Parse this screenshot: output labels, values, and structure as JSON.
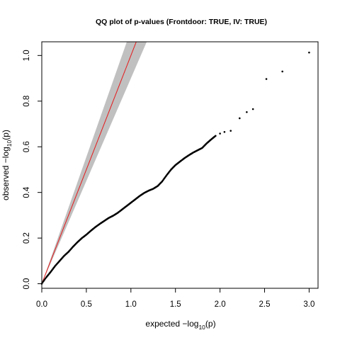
{
  "chart_data": {
    "type": "scatter",
    "title": "QQ plot of p-values (Frontdoor: TRUE, IV: TRUE)",
    "xlabel": {
      "prefix": "expected −log",
      "subscript": "10",
      "suffix": "(p)"
    },
    "ylabel": {
      "prefix": "observed −log",
      "subscript": "10",
      "suffix": "(p)"
    },
    "xlim": [
      0,
      3.1
    ],
    "ylim": [
      -0.02,
      1.06
    ],
    "x_ticks": [
      0.0,
      0.5,
      1.0,
      1.5,
      2.0,
      2.5,
      3.0
    ],
    "x_tick_labels": [
      "0.0",
      "0.5",
      "1.0",
      "1.5",
      "2.0",
      "2.5",
      "3.0"
    ],
    "y_ticks": [
      0.0,
      0.2,
      0.4,
      0.6,
      0.8,
      1.0
    ],
    "y_tick_labels": [
      "0.0",
      "0.2",
      "0.4",
      "0.6",
      "0.8",
      "1.0"
    ],
    "grid": false,
    "legend": "none",
    "colors": {
      "points": "#000000",
      "diagonal": "#e41a1c",
      "confidence_band": "#c0c0c0"
    },
    "diagonal_line": {
      "slope": 1,
      "intercept": 0
    },
    "confidence_band": {
      "lower": [
        [
          0,
          0
        ],
        [
          1.1,
          0.99
        ],
        [
          1.2,
          1.08
        ]
      ],
      "upper": [
        [
          0,
          0
        ],
        [
          0.99,
          1.1
        ],
        [
          1.06,
          1.18
        ]
      ]
    },
    "series": [
      {
        "points": [
          [
            0.0,
            0.0
          ],
          [
            0.02,
            0.012
          ],
          [
            0.05,
            0.028
          ],
          [
            0.1,
            0.052
          ],
          [
            0.15,
            0.078
          ],
          [
            0.2,
            0.1
          ],
          [
            0.25,
            0.122
          ],
          [
            0.3,
            0.14
          ],
          [
            0.35,
            0.162
          ],
          [
            0.4,
            0.182
          ],
          [
            0.45,
            0.2
          ],
          [
            0.5,
            0.215
          ],
          [
            0.55,
            0.232
          ],
          [
            0.6,
            0.248
          ],
          [
            0.65,
            0.262
          ],
          [
            0.7,
            0.275
          ],
          [
            0.75,
            0.288
          ],
          [
            0.8,
            0.298
          ],
          [
            0.85,
            0.31
          ],
          [
            0.9,
            0.325
          ],
          [
            0.95,
            0.34
          ],
          [
            1.0,
            0.355
          ],
          [
            1.05,
            0.37
          ],
          [
            1.1,
            0.385
          ],
          [
            1.15,
            0.398
          ],
          [
            1.2,
            0.408
          ],
          [
            1.25,
            0.416
          ],
          [
            1.3,
            0.428
          ],
          [
            1.35,
            0.448
          ],
          [
            1.4,
            0.475
          ],
          [
            1.45,
            0.5
          ],
          [
            1.5,
            0.52
          ],
          [
            1.55,
            0.535
          ],
          [
            1.6,
            0.55
          ],
          [
            1.65,
            0.563
          ],
          [
            1.7,
            0.575
          ],
          [
            1.75,
            0.585
          ],
          [
            1.8,
            0.595
          ],
          [
            1.85,
            0.615
          ],
          [
            1.9,
            0.632
          ],
          [
            1.95,
            0.648
          ],
          [
            2.0,
            0.658
          ],
          [
            2.05,
            0.665
          ],
          [
            2.12,
            0.67
          ],
          [
            2.22,
            0.725
          ],
          [
            2.3,
            0.752
          ],
          [
            2.37,
            0.765
          ],
          [
            2.52,
            0.897
          ],
          [
            2.7,
            0.93
          ],
          [
            3.0,
            1.013
          ]
        ]
      }
    ]
  }
}
